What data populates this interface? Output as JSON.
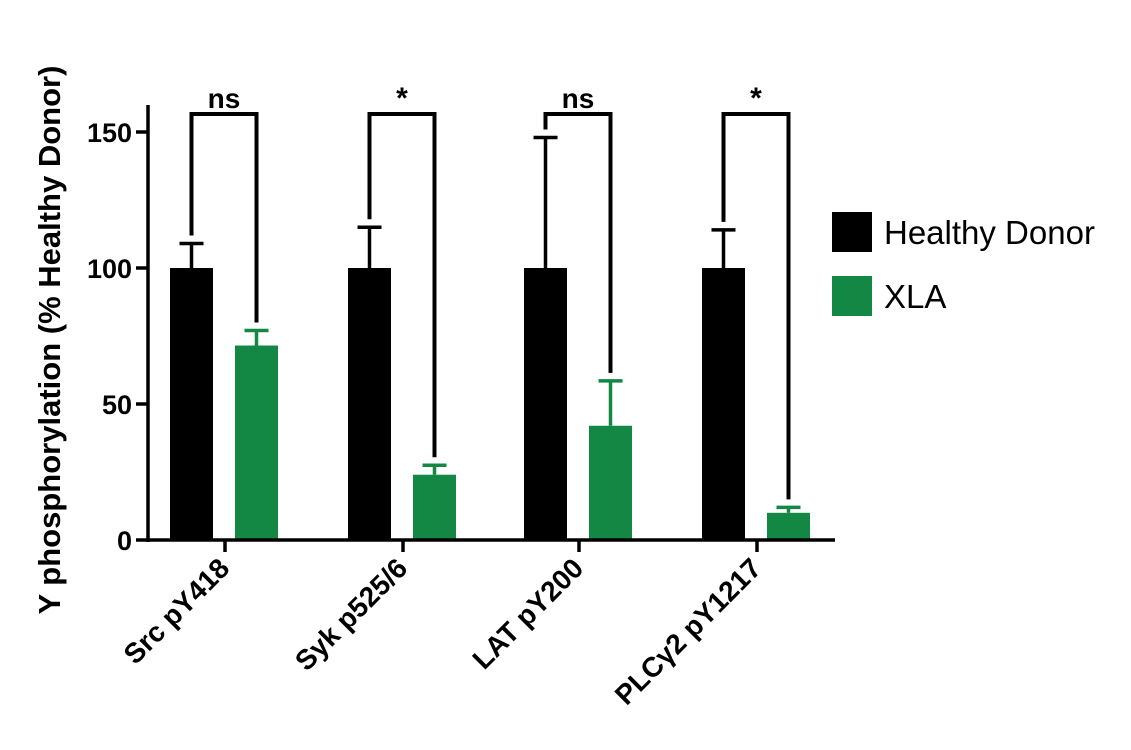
{
  "chart_data": {
    "type": "bar",
    "title": "",
    "xlabel": "",
    "ylabel": "Y phosphorylation (% Healthy Donor)",
    "ylim": [
      0,
      160
    ],
    "yticks": [
      0,
      50,
      100,
      150
    ],
    "categories": [
      "Src pY418",
      "Syk p525/6",
      "LAT pY200",
      "PLCγ2 pY1217"
    ],
    "series": [
      {
        "name": "Healthy Donor",
        "color": "#000000",
        "values": [
          100,
          100,
          100,
          100
        ],
        "errors": [
          9,
          15,
          48,
          14
        ]
      },
      {
        "name": "XLA",
        "color": "#138845",
        "values": [
          71.5,
          24,
          42,
          10
        ],
        "errors": [
          5.5,
          3.5,
          16.5,
          2
        ]
      }
    ],
    "significance": [
      "ns",
      "*",
      "ns",
      "*"
    ],
    "legend": {
      "placement": "right"
    },
    "grid": false
  }
}
